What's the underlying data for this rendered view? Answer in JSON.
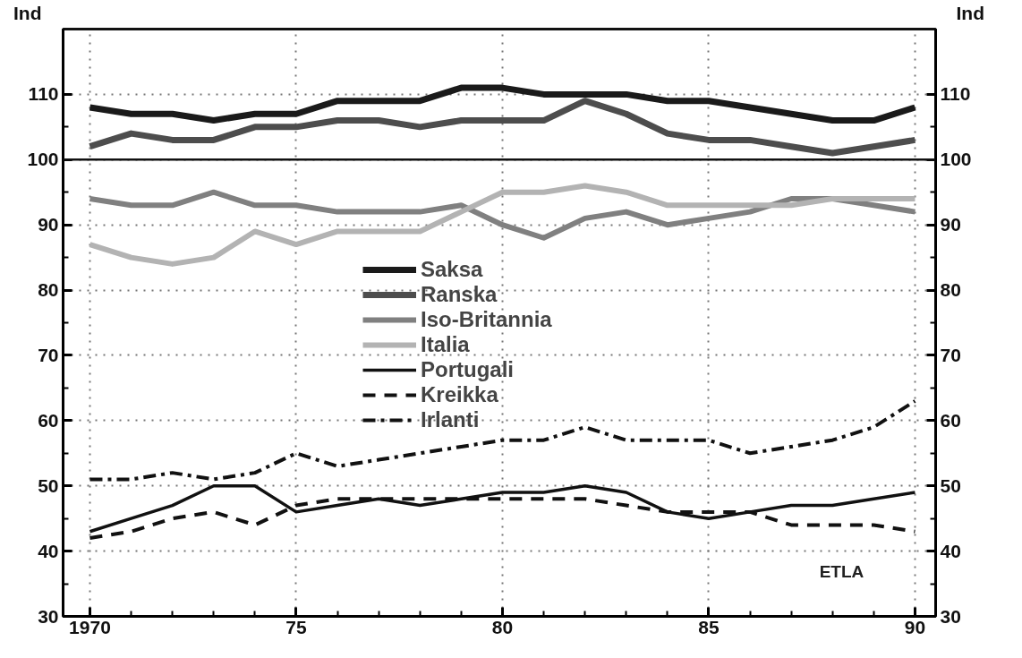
{
  "chart_data": {
    "type": "line",
    "ylabel": "Ind",
    "y2label": "Ind",
    "x": [
      1970,
      1971,
      1972,
      1973,
      1974,
      1975,
      1976,
      1977,
      1978,
      1979,
      1980,
      1981,
      1982,
      1983,
      1984,
      1985,
      1986,
      1987,
      1988,
      1989,
      1990
    ],
    "series": [
      {
        "name": "Saksa",
        "color": "#1a1a1a",
        "values": [
          108,
          107,
          107,
          106,
          107,
          107,
          109,
          109,
          109,
          111,
          111,
          110,
          110,
          110,
          109,
          109,
          108,
          107,
          106,
          106,
          108
        ]
      },
      {
        "name": "Ranska",
        "color": "#4d4d4d",
        "values": [
          102,
          104,
          103,
          103,
          105,
          105,
          106,
          106,
          105,
          106,
          106,
          106,
          109,
          107,
          104,
          103,
          103,
          102,
          101,
          102,
          103
        ]
      },
      {
        "name": "Iso-Britannia",
        "color": "#808080",
        "values": [
          94,
          93,
          93,
          95,
          93,
          93,
          92,
          92,
          92,
          93,
          90,
          88,
          91,
          92,
          90,
          91,
          92,
          94,
          94,
          93,
          92
        ]
      },
      {
        "name": "Italia",
        "color": "#b3b3b3",
        "values": [
          87,
          85,
          84,
          85,
          89,
          87,
          89,
          89,
          89,
          92,
          95,
          95,
          96,
          95,
          93,
          93,
          93,
          93,
          94,
          94,
          94
        ]
      },
      {
        "name": "Portugali",
        "color": "#111111",
        "values": [
          43,
          45,
          47,
          50,
          50,
          46,
          47,
          48,
          47,
          48,
          49,
          49,
          50,
          49,
          46,
          45,
          46,
          47,
          47,
          48,
          49
        ]
      },
      {
        "name": "Kreikka",
        "color": "#111111",
        "line_style": "dashed",
        "values": [
          42,
          43,
          45,
          46,
          44,
          47,
          48,
          48,
          48,
          48,
          48,
          48,
          48,
          47,
          46,
          46,
          46,
          44,
          44,
          44,
          43
        ]
      },
      {
        "name": "Irlanti",
        "color": "#111111",
        "line_style": "dashdot",
        "values": [
          51,
          51,
          52,
          51,
          52,
          55,
          53,
          54,
          55,
          56,
          57,
          57,
          59,
          57,
          57,
          57,
          55,
          56,
          57,
          59,
          63
        ]
      }
    ],
    "xlim": [
      1969.35,
      1990.5
    ],
    "xticks": [
      {
        "value": 1970,
        "label": "1970"
      },
      {
        "value": 1975,
        "label": "75"
      },
      {
        "value": 1980,
        "label": "80"
      },
      {
        "value": 1985,
        "label": "85"
      },
      {
        "value": 1990,
        "label": "90"
      }
    ],
    "ylim": [
      30,
      120
    ],
    "yticks": [
      30,
      40,
      50,
      60,
      70,
      80,
      90,
      100,
      110
    ],
    "y2lim": [
      30,
      120
    ],
    "y2ticks": [
      30,
      40,
      50,
      60,
      70,
      80,
      90,
      100,
      110
    ],
    "ref_lines": [
      {
        "axis": "y",
        "value": 100,
        "label": null,
        "color": "#111111"
      }
    ],
    "annotations": [
      "ETLA"
    ],
    "grid": true,
    "legend": "center",
    "marker": "none"
  }
}
